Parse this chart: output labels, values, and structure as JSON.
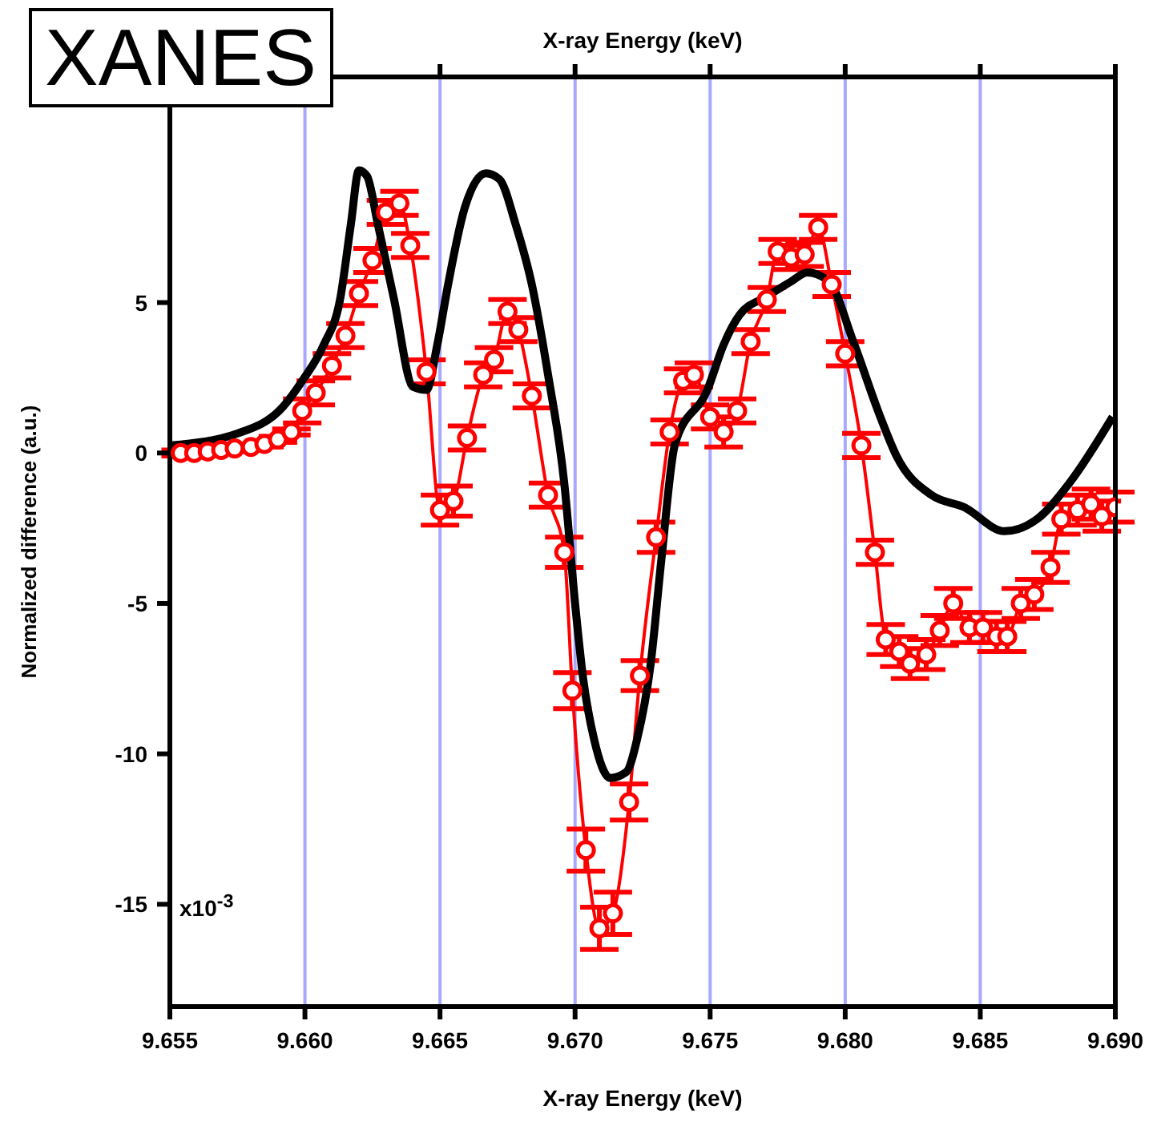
{
  "chart_data": {
    "type": "line",
    "xlabel": "X-ray Energy (keV)",
    "x2label": "X-ray Energy (keV)",
    "ylabel": "Normalized difference (a.u.)",
    "annotations": [
      "XANES",
      "x10$^{-3}$"
    ],
    "xlim": [
      9.655,
      9.69
    ],
    "xticks": [
      {
        "value": 9.655,
        "label": "9.655"
      },
      {
        "value": 9.66,
        "label": "9.660"
      },
      {
        "value": 9.665,
        "label": "9.665"
      },
      {
        "value": 9.67,
        "label": "9.670"
      },
      {
        "value": 9.675,
        "label": "9.675"
      },
      {
        "value": 9.68,
        "label": "9.680"
      },
      {
        "value": 9.685,
        "label": "9.685"
      },
      {
        "value": 9.69,
        "label": "9.690"
      }
    ],
    "ylim": [
      -18.4,
      12.5
    ],
    "yticks": [
      -15,
      -10,
      -5,
      0,
      5
    ],
    "grid": "x",
    "series": [
      {
        "color": "#ff0000",
        "marker": "circle",
        "x": [
          9.6554,
          9.6559,
          9.6564,
          9.6569,
          9.6574,
          9.658,
          9.6585,
          9.659,
          9.6595,
          9.6599,
          9.6604,
          9.661,
          9.6615,
          9.662,
          9.6625,
          9.663,
          9.6635,
          9.6639,
          9.6645,
          9.665,
          9.6655,
          9.666,
          9.6666,
          9.667,
          9.6675,
          9.6679,
          9.6684,
          9.669,
          9.6696,
          9.6699,
          9.6704,
          9.6709,
          9.6714,
          9.672,
          9.6724,
          9.673,
          9.6735,
          9.674,
          9.6744,
          9.675,
          9.6755,
          9.676,
          9.6765,
          9.6771,
          9.6775,
          9.678,
          9.6785,
          9.679,
          9.6795,
          9.68,
          9.6806,
          9.6811,
          9.6815,
          9.682,
          9.6824,
          9.683,
          9.6835,
          9.684,
          9.6846,
          9.6851,
          9.6856,
          9.686,
          9.6865,
          9.687,
          9.6876,
          9.688,
          9.6886,
          9.6891,
          9.6895,
          9.69
        ],
        "values": [
          0,
          0,
          0.05,
          0.1,
          0.15,
          0.2,
          0.3,
          0.45,
          0.7,
          1.4,
          2.0,
          2.9,
          3.9,
          5.3,
          6.4,
          8.0,
          8.3,
          6.9,
          2.7,
          -1.9,
          -1.6,
          0.5,
          2.6,
          3.1,
          4.7,
          4.1,
          1.9,
          -1.4,
          -3.3,
          -7.9,
          -13.2,
          -15.8,
          -15.3,
          -11.6,
          -7.4,
          -2.8,
          0.7,
          2.4,
          2.6,
          1.2,
          0.7,
          1.4,
          3.7,
          5.1,
          6.7,
          6.5,
          6.6,
          7.5,
          5.6,
          3.3,
          0.25,
          -3.3,
          -6.2,
          -6.6,
          -7.0,
          -6.7,
          -5.9,
          -5.0,
          -5.8,
          -5.8,
          -6.1,
          -6.1,
          -5.0,
          -4.7,
          -3.8,
          -2.2,
          -1.9,
          -1.7,
          -2.1,
          -1.8
        ],
        "errors": [
          0.1,
          0.1,
          0.1,
          0.1,
          0.1,
          0.1,
          0.1,
          0.1,
          0.1,
          0.4,
          0.4,
          0.4,
          0.4,
          0.4,
          0.4,
          0.4,
          0.4,
          0.4,
          0.4,
          0.5,
          0.5,
          0.4,
          0.4,
          0.4,
          0.4,
          0.4,
          0.4,
          0.4,
          0.5,
          0.6,
          0.7,
          0.7,
          0.7,
          0.6,
          0.5,
          0.5,
          0.4,
          0.4,
          0.4,
          0.4,
          0.5,
          0.4,
          0.4,
          0.4,
          0.4,
          0.4,
          0.4,
          0.4,
          0.4,
          0.4,
          0.4,
          0.4,
          0.5,
          0.5,
          0.5,
          0.5,
          0.5,
          0.5,
          0.5,
          0.5,
          0.5,
          0.5,
          0.5,
          0.5,
          0.5,
          0.5,
          0.5,
          0.5,
          0.5,
          0.5
        ]
      },
      {
        "color": "#000000",
        "marker": "none",
        "x": [
          9.655,
          9.6575,
          9.6592,
          9.6599,
          9.6607,
          9.6613,
          9.6617,
          9.662,
          9.6623,
          9.6627,
          9.6633,
          9.664,
          9.6645,
          9.6649,
          9.6653,
          9.6659,
          9.6667,
          9.6672,
          9.6678,
          9.6684,
          9.669,
          9.6696,
          9.67,
          9.6703,
          9.6707,
          9.6713,
          9.6719,
          9.6723,
          9.6728,
          9.6732,
          9.6737,
          9.6749,
          9.6755,
          9.6761,
          9.6771,
          9.678,
          9.6786,
          9.6794,
          9.6803,
          9.6813,
          9.6819,
          9.6832,
          9.6844,
          9.6859,
          9.6871,
          9.6883,
          9.6899
        ],
        "values": [
          0.25,
          0.65,
          1.55,
          2.4,
          3.6,
          5.1,
          7.6,
          9.4,
          9.2,
          7.6,
          5.1,
          2.2,
          2.1,
          3.6,
          5.6,
          8.1,
          9.3,
          9.1,
          7.6,
          5.6,
          2.6,
          -1.0,
          -5.0,
          -7.5,
          -9.5,
          -10.8,
          -10.6,
          -9.5,
          -7.0,
          -3.5,
          0.3,
          2.1,
          3.6,
          4.6,
          5.2,
          5.7,
          6.0,
          5.7,
          3.7,
          1.2,
          -0.1,
          -1.4,
          -1.8,
          -2.6,
          -2.2,
          -1.0,
          1.2
        ]
      }
    ]
  }
}
